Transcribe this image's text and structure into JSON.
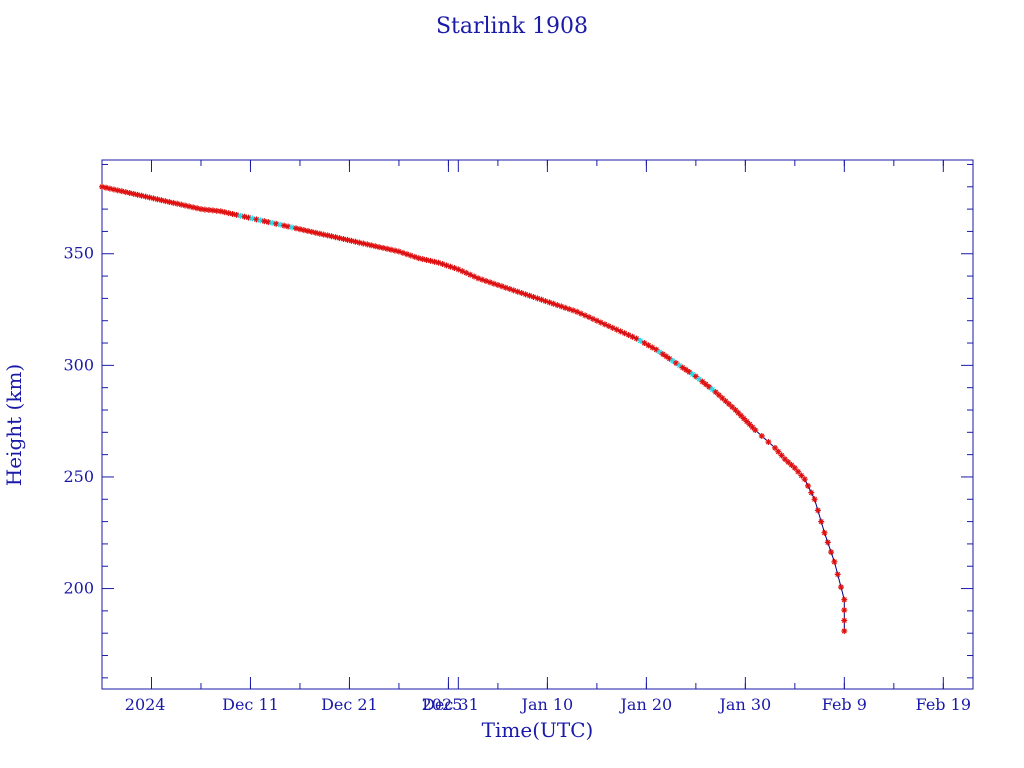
{
  "chart_data": {
    "type": "scatter",
    "title": "Starlink 1908",
    "xlabel": "Time(UTC)",
    "ylabel": "Height (km)",
    "xlim": [
      "2024-11-26",
      "2025-02-22"
    ],
    "ylim": [
      155,
      392
    ],
    "yticks": [
      200,
      250,
      300,
      350
    ],
    "xticks": [
      {
        "date": "2024-12-01",
        "label": "2024"
      },
      {
        "date": "2024-12-11",
        "label": "Dec 11"
      },
      {
        "date": "2024-12-21",
        "label": "Dec 21"
      },
      {
        "date": "2024-12-31",
        "label": "Dec 31"
      },
      {
        "date": "2025-01-01",
        "label": "2025"
      },
      {
        "date": "2025-01-10",
        "label": "Jan 10"
      },
      {
        "date": "2025-01-20",
        "label": "Jan 20"
      },
      {
        "date": "2025-01-30",
        "label": "Jan 30"
      },
      {
        "date": "2025-02-09",
        "label": "Feb  9"
      },
      {
        "date": "2025-02-19",
        "label": "Feb 19"
      }
    ],
    "grid": false,
    "colors": {
      "frame": "#1a1aa8",
      "line": "#000080",
      "points": "#e01010",
      "highlight": "#30d8e8"
    },
    "series": [
      {
        "values": [
          {
            "x": "2024-11-26",
            "y": 380
          },
          {
            "x": "2024-11-28",
            "y": 378
          },
          {
            "x": "2024-11-30",
            "y": 376
          },
          {
            "x": "2024-12-02",
            "y": 374
          },
          {
            "x": "2024-12-04",
            "y": 372
          },
          {
            "x": "2024-12-06",
            "y": 370
          },
          {
            "x": "2024-12-08",
            "y": 369
          },
          {
            "x": "2024-12-10",
            "y": 367
          },
          {
            "x": "2024-12-12",
            "y": 365
          },
          {
            "x": "2024-12-14",
            "y": 363
          },
          {
            "x": "2024-12-16",
            "y": 361
          },
          {
            "x": "2024-12-18",
            "y": 359
          },
          {
            "x": "2024-12-20",
            "y": 357
          },
          {
            "x": "2024-12-22",
            "y": 355
          },
          {
            "x": "2024-12-24",
            "y": 353
          },
          {
            "x": "2024-12-26",
            "y": 351
          },
          {
            "x": "2024-12-28",
            "y": 348
          },
          {
            "x": "2024-12-30",
            "y": 346
          },
          {
            "x": "2025-01-01",
            "y": 343
          },
          {
            "x": "2025-01-03",
            "y": 339
          },
          {
            "x": "2025-01-05",
            "y": 336
          },
          {
            "x": "2025-01-07",
            "y": 333
          },
          {
            "x": "2025-01-09",
            "y": 330
          },
          {
            "x": "2025-01-11",
            "y": 327
          },
          {
            "x": "2025-01-13",
            "y": 324
          },
          {
            "x": "2025-01-15",
            "y": 320
          },
          {
            "x": "2025-01-17",
            "y": 316
          },
          {
            "x": "2025-01-19",
            "y": 312
          },
          {
            "x": "2025-01-21",
            "y": 307
          },
          {
            "x": "2025-01-23",
            "y": 301
          },
          {
            "x": "2025-01-25",
            "y": 295
          },
          {
            "x": "2025-01-27",
            "y": 288
          },
          {
            "x": "2025-01-29",
            "y": 280
          },
          {
            "x": "2025-01-31",
            "y": 271
          },
          {
            "x": "2025-02-02",
            "y": 263
          },
          {
            "x": "2025-02-03",
            "y": 258
          },
          {
            "x": "2025-02-04",
            "y": 254
          },
          {
            "x": "2025-02-05",
            "y": 249
          },
          {
            "x": "2025-02-06",
            "y": 240
          },
          {
            "x": "2025-02-07",
            "y": 225
          },
          {
            "x": "2025-02-08",
            "y": 212
          },
          {
            "x": "2025-02-09",
            "y": 195
          },
          {
            "x": "2025-02-09",
            "y": 181
          }
        ]
      }
    ]
  }
}
